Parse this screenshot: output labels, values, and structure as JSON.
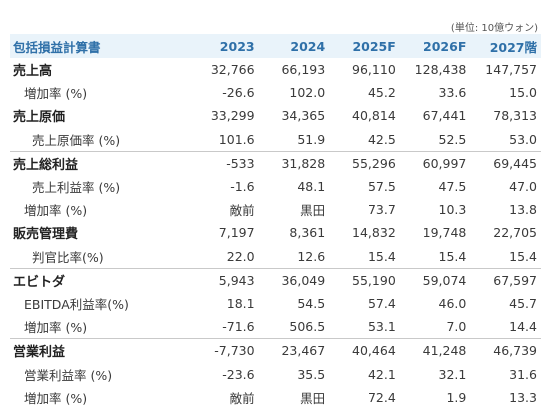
{
  "unit_note": "(単位: 10億ウォン)",
  "header": {
    "label": "包括損益計算書",
    "years": [
      "2023",
      "2024",
      "2025F",
      "2026F",
      "2027階"
    ]
  },
  "rows": [
    {
      "label": "売上高",
      "values": [
        "32,766",
        "66,193",
        "96,110",
        "128,438",
        "147,757"
      ]
    },
    {
      "label": "増加率 (%)",
      "values": [
        "-26.6",
        "102.0",
        "45.2",
        "33.6",
        "15.0"
      ]
    },
    {
      "label": "売上原価",
      "values": [
        "33,299",
        "34,365",
        "40,814",
        "67,441",
        "78,313"
      ]
    },
    {
      "label": "売上原価率 (%)",
      "values": [
        "101.6",
        "51.9",
        "42.5",
        "52.5",
        "53.0"
      ]
    },
    {
      "label": "売上総利益",
      "values": [
        "-533",
        "31,828",
        "55,296",
        "60,997",
        "69,445"
      ]
    },
    {
      "label": "売上利益率 (%)",
      "values": [
        "-1.6",
        "48.1",
        "57.5",
        "47.5",
        "47.0"
      ]
    },
    {
      "label": "増加率 (%)",
      "values": [
        "敵前",
        "黒田",
        "73.7",
        "10.3",
        "13.8"
      ]
    },
    {
      "label": "販売管理費",
      "values": [
        "7,197",
        "8,361",
        "14,832",
        "19,748",
        "22,705"
      ]
    },
    {
      "label": "判官比率(%)",
      "values": [
        "22.0",
        "12.6",
        "15.4",
        "15.4",
        "15.4"
      ]
    },
    {
      "label": "エビトダ",
      "values": [
        "5,943",
        "36,049",
        "55,190",
        "59,074",
        "67,597"
      ]
    },
    {
      "label": "EBITDA利益率(%)",
      "values": [
        "18.1",
        "54.5",
        "57.4",
        "46.0",
        "45.7"
      ]
    },
    {
      "label": "増加率 (%)",
      "values": [
        "-71.6",
        "506.5",
        "53.1",
        "7.0",
        "14.4"
      ]
    },
    {
      "label": "営業利益",
      "values": [
        "-7,730",
        "23,467",
        "40,464",
        "41,248",
        "46,739"
      ]
    },
    {
      "label": "営業利益率 (%)",
      "values": [
        "-23.6",
        "35.5",
        "42.1",
        "32.1",
        "31.6"
      ]
    },
    {
      "label": "増加率 (%)",
      "values": [
        "敵前",
        "黒田",
        "72.4",
        "1.9",
        "13.3"
      ]
    }
  ]
}
